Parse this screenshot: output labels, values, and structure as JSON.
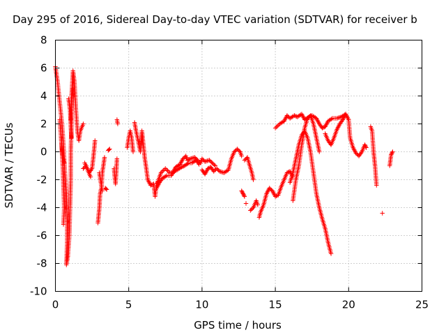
{
  "chart_data": {
    "type": "scatter",
    "title": "Day 295 of 2016, Sidereal Day-to-day VTEC variation (SDTVAR) for receiver b",
    "xlabel": "GPS time / hours",
    "ylabel": "SDTVAR / TECUs",
    "xlim": [
      0,
      25
    ],
    "ylim": [
      -10,
      8
    ],
    "xticks": [
      0,
      5,
      10,
      15,
      20,
      25
    ],
    "yticks": [
      -10,
      -8,
      -6,
      -4,
      -2,
      0,
      2,
      4,
      6,
      8
    ],
    "xtick_labels": [
      "0",
      "5",
      "10",
      "15",
      "20",
      "25"
    ],
    "ytick_labels": [
      "-10",
      "-8",
      "-6",
      "-4",
      "-2",
      "0",
      "2",
      "4",
      "6",
      "8"
    ],
    "grid": true,
    "marker": "+",
    "series": [
      {
        "name": "SDTVAR",
        "color": "#ff0000",
        "segments": [
          [
            [
              0.0,
              6.1
            ],
            [
              0.15,
              5.0
            ],
            [
              0.3,
              3.5
            ],
            [
              0.45,
              2.0
            ],
            [
              0.55,
              0.5
            ],
            [
              0.65,
              -1.5
            ],
            [
              0.75,
              -3.0
            ],
            [
              0.8,
              -5.0
            ],
            [
              0.8,
              -6.5
            ],
            [
              0.75,
              -8.1
            ],
            [
              0.85,
              -7.5
            ],
            [
              0.95,
              -6.0
            ],
            [
              1.0,
              -4.0
            ],
            [
              1.05,
              -2.0
            ],
            [
              1.05,
              0.0
            ],
            [
              1.1,
              2.0
            ],
            [
              1.1,
              4.0
            ],
            [
              1.2,
              5.8
            ],
            [
              1.3,
              5.0
            ],
            [
              1.4,
              3.0
            ],
            [
              1.5,
              1.5
            ],
            [
              1.6,
              0.8
            ],
            [
              1.7,
              1.5
            ],
            [
              1.9,
              2.0
            ]
          ],
          [
            [
              0.4,
              1.0
            ],
            [
              0.45,
              0.0
            ],
            [
              0.5,
              -1.0
            ],
            [
              0.55,
              -2.5
            ],
            [
              0.6,
              -4.0
            ],
            [
              0.55,
              -5.2
            ]
          ],
          [
            [
              0.3,
              2.3
            ],
            [
              0.4,
              0.8
            ],
            [
              0.5,
              -0.5
            ],
            [
              0.6,
              -0.8
            ]
          ],
          [
            [
              0.9,
              3.8
            ],
            [
              1.0,
              3.0
            ],
            [
              1.05,
              1.8
            ],
            [
              1.1,
              1.0
            ]
          ],
          [
            [
              1.05,
              2.3
            ],
            [
              1.1,
              3.5
            ],
            [
              1.2,
              4.5
            ]
          ],
          [
            [
              1.9,
              -1.2
            ],
            [
              2.1,
              -1.0
            ],
            [
              2.3,
              -1.5
            ],
            [
              2.5,
              -1.2
            ],
            [
              2.6,
              -0.3
            ],
            [
              2.7,
              0.8
            ]
          ],
          [
            [
              2.0,
              -0.8
            ],
            [
              2.2,
              -1.3
            ],
            [
              2.4,
              -1.8
            ]
          ],
          [
            [
              2.9,
              -5.1
            ],
            [
              3.0,
              -4.0
            ],
            [
              3.05,
              -3.0
            ],
            [
              3.15,
              -2.5
            ],
            [
              3.2,
              -1.5
            ],
            [
              3.3,
              -0.8
            ],
            [
              3.35,
              -0.4
            ]
          ],
          [
            [
              3.0,
              -1.5
            ],
            [
              3.1,
              -2.2
            ],
            [
              3.2,
              -2.8
            ]
          ],
          [
            [
              3.4,
              -2.6
            ],
            [
              3.5,
              -2.7
            ]
          ],
          [
            [
              3.6,
              0.1
            ],
            [
              3.7,
              0.2
            ]
          ],
          [
            [
              4.0,
              -1.2
            ],
            [
              4.05,
              -1.8
            ],
            [
              4.1,
              -2.3
            ],
            [
              4.15,
              -1.5
            ],
            [
              4.2,
              -0.5
            ]
          ],
          [
            [
              4.2,
              2.3
            ],
            [
              4.25,
              2.0
            ]
          ],
          [
            [
              4.9,
              0.3
            ],
            [
              5.0,
              1.0
            ],
            [
              5.1,
              1.5
            ],
            [
              5.2,
              1.0
            ],
            [
              5.3,
              0.0
            ]
          ],
          [
            [
              5.4,
              2.1
            ],
            [
              5.5,
              1.5
            ],
            [
              5.6,
              1.0
            ],
            [
              5.7,
              0.5
            ],
            [
              5.8,
              0.0
            ],
            [
              5.9,
              1.5
            ],
            [
              6.0,
              0.5
            ],
            [
              6.1,
              -0.5
            ],
            [
              6.2,
              -1.2
            ],
            [
              6.3,
              -2.0
            ],
            [
              6.5,
              -2.4
            ],
            [
              6.7,
              -2.3
            ],
            [
              6.8,
              -3.2
            ],
            [
              6.9,
              -2.3
            ],
            [
              7.0,
              -2.1
            ],
            [
              7.2,
              -1.5
            ],
            [
              7.5,
              -1.2
            ],
            [
              7.8,
              -1.5
            ],
            [
              8.0,
              -1.5
            ],
            [
              8.2,
              -1.1
            ],
            [
              8.5,
              -0.9
            ],
            [
              8.7,
              -0.5
            ],
            [
              8.9,
              -0.3
            ],
            [
              9.0,
              -0.6
            ],
            [
              9.2,
              -0.5
            ],
            [
              9.5,
              -0.4
            ],
            [
              9.7,
              -0.6
            ],
            [
              9.9,
              -0.8
            ],
            [
              10.0,
              -0.5
            ],
            [
              10.2,
              -0.7
            ],
            [
              10.5,
              -0.6
            ],
            [
              10.7,
              -0.8
            ],
            [
              10.9,
              -1.0
            ]
          ],
          [
            [
              6.9,
              -2.6
            ],
            [
              7.1,
              -2.2
            ],
            [
              7.3,
              -1.9
            ],
            [
              7.6,
              -1.7
            ],
            [
              7.9,
              -1.7
            ],
            [
              8.1,
              -1.4
            ],
            [
              8.3,
              -1.3
            ],
            [
              8.6,
              -1.1
            ],
            [
              8.8,
              -1.0
            ],
            [
              9.1,
              -0.8
            ],
            [
              9.3,
              -0.8
            ],
            [
              9.6,
              -0.6
            ],
            [
              9.8,
              -0.9
            ]
          ],
          [
            [
              10.0,
              -1.3
            ],
            [
              10.2,
              -1.6
            ],
            [
              10.4,
              -1.2
            ],
            [
              10.6,
              -1.1
            ],
            [
              10.8,
              -1.4
            ],
            [
              11.0,
              -1.2
            ],
            [
              11.2,
              -1.4
            ],
            [
              11.5,
              -1.5
            ],
            [
              11.8,
              -1.3
            ],
            [
              12.0,
              -0.5
            ],
            [
              12.2,
              0.0
            ],
            [
              12.4,
              0.2
            ],
            [
              12.6,
              0.0
            ],
            [
              12.7,
              -0.3
            ]
          ],
          [
            [
              12.7,
              -2.8
            ],
            [
              12.8,
              -3.0
            ],
            [
              12.9,
              -3.2
            ]
          ],
          [
            [
              12.9,
              -0.6
            ],
            [
              13.1,
              -0.4
            ],
            [
              13.2,
              -0.8
            ],
            [
              13.4,
              -1.5
            ],
            [
              13.5,
              -2.0
            ]
          ],
          [
            [
              13.0,
              -3.7
            ]
          ],
          [
            [
              13.3,
              -4.2
            ],
            [
              13.5,
              -4.0
            ],
            [
              13.7,
              -3.5
            ],
            [
              13.8,
              -3.8
            ]
          ],
          [
            [
              13.9,
              -4.7
            ],
            [
              14.0,
              -4.3
            ],
            [
              14.2,
              -3.8
            ],
            [
              14.4,
              -3.0
            ],
            [
              14.6,
              -2.6
            ],
            [
              14.8,
              -2.8
            ],
            [
              15.0,
              -3.2
            ],
            [
              15.2,
              -3.1
            ],
            [
              15.4,
              -2.5
            ],
            [
              15.6,
              -2.0
            ],
            [
              15.8,
              -1.5
            ],
            [
              16.0,
              -1.4
            ],
            [
              16.2,
              -1.8
            ]
          ],
          [
            [
              15.0,
              1.7
            ],
            [
              15.3,
              2.0
            ],
            [
              15.6,
              2.2
            ],
            [
              15.8,
              2.6
            ],
            [
              16.0,
              2.4
            ],
            [
              16.3,
              2.6
            ],
            [
              16.5,
              2.5
            ],
            [
              16.8,
              2.7
            ],
            [
              17.0,
              2.3
            ],
            [
              17.3,
              2.5
            ],
            [
              17.5,
              2.6
            ],
            [
              17.8,
              2.4
            ],
            [
              18.0,
              2.0
            ],
            [
              18.2,
              1.7
            ],
            [
              18.4,
              1.8
            ],
            [
              18.6,
              2.2
            ],
            [
              18.9,
              2.4
            ],
            [
              19.2,
              2.4
            ],
            [
              19.5,
              2.5
            ],
            [
              19.8,
              2.7
            ],
            [
              20.0,
              2.3
            ],
            [
              20.1,
              1.0
            ],
            [
              20.3,
              0.3
            ],
            [
              20.5,
              -0.1
            ],
            [
              20.7,
              -0.3
            ],
            [
              20.9,
              0.0
            ],
            [
              21.1,
              0.5
            ],
            [
              21.2,
              0.3
            ]
          ],
          [
            [
              16.0,
              -2.2
            ],
            [
              16.2,
              -1.5
            ],
            [
              16.4,
              -0.5
            ],
            [
              16.6,
              0.5
            ],
            [
              16.8,
              1.2
            ],
            [
              17.0,
              1.5
            ],
            [
              17.2,
              1.0
            ],
            [
              17.4,
              0.0
            ],
            [
              17.6,
              -1.5
            ],
            [
              17.8,
              -3.0
            ],
            [
              18.0,
              -4.0
            ],
            [
              18.2,
              -4.8
            ],
            [
              18.4,
              -5.5
            ],
            [
              18.6,
              -6.5
            ],
            [
              18.8,
              -7.3
            ]
          ],
          [
            [
              16.2,
              -3.5
            ],
            [
              16.4,
              -2.0
            ],
            [
              16.6,
              -1.0
            ],
            [
              16.8,
              0.5
            ],
            [
              17.0,
              1.7
            ],
            [
              17.2,
              2.4
            ],
            [
              17.4,
              2.6
            ],
            [
              17.6,
              2.0
            ],
            [
              17.8,
              1.0
            ],
            [
              18.0,
              0.0
            ]
          ],
          [
            [
              18.4,
              1.3
            ],
            [
              18.6,
              0.8
            ],
            [
              18.8,
              0.5
            ],
            [
              19.0,
              1.0
            ],
            [
              19.2,
              1.6
            ],
            [
              19.4,
              2.0
            ],
            [
              19.6,
              2.3
            ],
            [
              19.8,
              2.7
            ]
          ],
          [
            [
              21.5,
              1.8
            ],
            [
              21.6,
              1.5
            ],
            [
              21.7,
              0.0
            ],
            [
              21.8,
              -1.0
            ],
            [
              21.9,
              -2.4
            ]
          ],
          [
            [
              22.3,
              -4.4
            ]
          ],
          [
            [
              22.8,
              -1.0
            ],
            [
              22.9,
              -0.2
            ],
            [
              23.0,
              0.0
            ]
          ]
        ]
      }
    ]
  }
}
